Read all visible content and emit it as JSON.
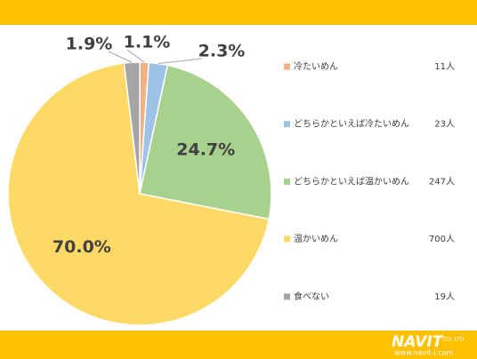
{
  "chart_data": {
    "type": "pie",
    "categories": [
      "冷たいめん",
      "どちらかといえば冷たいめん",
      "どちらかといえば温かいめん",
      "温かいめん",
      "食べない"
    ],
    "values": [
      1.1,
      2.3,
      24.7,
      70.0,
      1.9
    ],
    "value_labels": [
      "1.1%",
      "2.3%",
      "24.7%",
      "70.0%",
      "1.9%"
    ],
    "colors": [
      "#f4b183",
      "#9dc3e6",
      "#a9d18e",
      "#ffd966",
      "#a5a5a5"
    ],
    "counts": [
      11,
      23,
      247,
      700,
      19
    ],
    "count_labels": [
      "11人",
      "23人",
      "247人",
      "700人",
      "19人"
    ]
  },
  "footer": {
    "brand": "NAVIT",
    "company": "CO.,LTD",
    "url": "www.navit-j.com"
  }
}
